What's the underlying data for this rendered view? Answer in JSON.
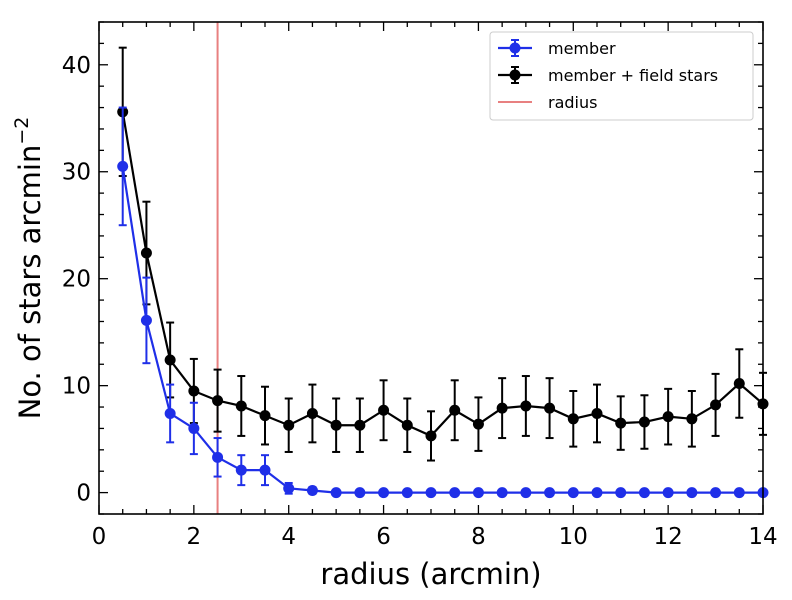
{
  "chart_data": {
    "type": "line",
    "xlabel": "radius (arcmin)",
    "ylabel": "No. of stars  arcmin",
    "ylabel_superscript": "−2",
    "xlim": [
      0,
      14
    ],
    "ylim": [
      -2,
      44
    ],
    "xticks": [
      0,
      2,
      4,
      6,
      8,
      10,
      12,
      14
    ],
    "yticks": [
      0,
      10,
      20,
      30,
      40
    ],
    "x_minor_step": 0.5,
    "y_minor_step": 2,
    "grid": false,
    "legend_position": "top-right",
    "series": [
      {
        "name": "member",
        "color": "#1f2fe8",
        "marker": "circle",
        "x": [
          0.5,
          1.0,
          1.5,
          2.0,
          2.5,
          3.0,
          3.5,
          4.0,
          4.5,
          5.0,
          5.5,
          6.0,
          6.5,
          7.0,
          7.5,
          8.0,
          8.5,
          9.0,
          9.5,
          10.0,
          10.5,
          11.0,
          11.5,
          12.0,
          12.5,
          13.0,
          13.5,
          14.0
        ],
        "y": [
          30.5,
          16.1,
          7.4,
          6.0,
          3.3,
          2.1,
          2.1,
          0.4,
          0.2,
          0,
          0,
          0,
          0,
          0,
          0,
          0,
          0,
          0,
          0,
          0,
          0,
          0,
          0,
          0,
          0,
          0,
          0,
          0
        ],
        "yerr": [
          5.5,
          4.0,
          2.7,
          2.4,
          1.8,
          1.4,
          1.4,
          0.5,
          0.3,
          0,
          0,
          0,
          0,
          0,
          0,
          0,
          0,
          0,
          0,
          0,
          0,
          0,
          0,
          0,
          0,
          0,
          0,
          0
        ]
      },
      {
        "name": "member + field stars",
        "color": "#000000",
        "marker": "circle",
        "x": [
          0.5,
          1.0,
          1.5,
          2.0,
          2.5,
          3.0,
          3.5,
          4.0,
          4.5,
          5.0,
          5.5,
          6.0,
          6.5,
          7.0,
          7.5,
          8.0,
          8.5,
          9.0,
          9.5,
          10.0,
          10.5,
          11.0,
          11.5,
          12.0,
          12.5,
          13.0,
          13.5,
          14.0
        ],
        "y": [
          35.6,
          22.4,
          12.4,
          9.5,
          8.6,
          8.1,
          7.2,
          6.3,
          7.4,
          6.3,
          6.3,
          7.7,
          6.3,
          5.3,
          7.7,
          6.4,
          7.9,
          8.1,
          7.9,
          6.9,
          7.4,
          6.5,
          6.6,
          7.1,
          6.9,
          8.2,
          10.2,
          8.3
        ],
        "yerr": [
          6.0,
          4.8,
          3.5,
          3.0,
          2.9,
          2.8,
          2.7,
          2.5,
          2.7,
          2.5,
          2.5,
          2.8,
          2.5,
          2.3,
          2.8,
          2.5,
          2.8,
          2.8,
          2.8,
          2.6,
          2.7,
          2.5,
          2.5,
          2.6,
          2.6,
          2.9,
          3.2,
          2.9
        ]
      }
    ],
    "vline": {
      "name": "radius",
      "x": 2.5,
      "color": "#e88080"
    }
  }
}
